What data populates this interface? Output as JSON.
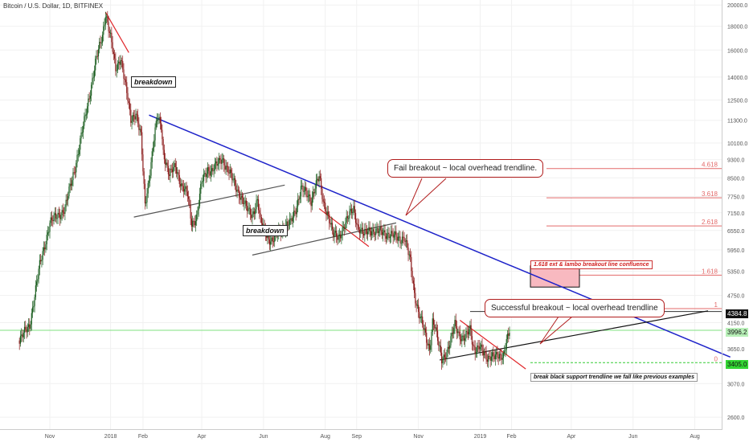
{
  "chart_title": "Bitcoin / U.S. Dollar, 1D, BITFINEX",
  "colors": {
    "up": "#1b5e20",
    "down": "#8b1a1a",
    "blue_trend": "#1d22c9",
    "red_trend": "#e0262a",
    "black_trend": "#111111",
    "fib": "#e36a6a",
    "grid": "#f1f1f1",
    "green_level": "#7fe07f",
    "zone_fill": "#f8b9c0"
  },
  "price_tags": {
    "last_label": "4384.8",
    "mid_label": "3996.2",
    "low_label": "3405.0"
  },
  "annotations": {
    "callout_fail": "Fail breakout ~ local overhead trendline.",
    "callout_success": "Successful breakout ~ local overhead trendline",
    "breakdown_1": "breakdown",
    "breakdown_2": "breakdown",
    "note_confluence": "1.618 ext & lambo breakout line confluence",
    "note_support": "break black support trendline we fall like previous examples"
  },
  "chart_data": {
    "type": "candlestick",
    "title": "Bitcoin / U.S. Dollar, 1D, BITFINEX",
    "y_scale": "log",
    "ylim": [
      2450,
      20500
    ],
    "y_ticks": [
      "20000.0",
      "18000.0",
      "16000.0",
      "14000.0",
      "12500.0",
      "11300.0",
      "10100.0",
      "9300.0",
      "8500.0",
      "7750.0",
      "7150.0",
      "6550.0",
      "5950.0",
      "5350.0",
      "4750.0",
      "4150.0",
      "3650.0",
      "3070.0",
      "2600.0"
    ],
    "x_ticks": [
      {
        "label": "Nov",
        "index": 0
      },
      {
        "label": "2018",
        "index": 60
      },
      {
        "label": "Feb",
        "index": 92
      },
      {
        "label": "Apr",
        "index": 150
      },
      {
        "label": "Jun",
        "index": 211
      },
      {
        "label": "Aug",
        "index": 272
      },
      {
        "label": "Sep",
        "index": 303
      },
      {
        "label": "Nov",
        "index": 364
      },
      {
        "label": "2019",
        "index": 425
      },
      {
        "label": "Feb",
        "index": 456
      },
      {
        "label": "Apr",
        "index": 515
      },
      {
        "label": "Jun",
        "index": 576
      },
      {
        "label": "Aug",
        "index": 637
      }
    ],
    "price_anchors": [
      [
        -30,
        3800
      ],
      [
        -20,
        4100
      ],
      [
        -10,
        5500
      ],
      [
        0,
        6800
      ],
      [
        15,
        7300
      ],
      [
        25,
        9000
      ],
      [
        35,
        11500
      ],
      [
        45,
        15000
      ],
      [
        52,
        17200
      ],
      [
        55,
        19300
      ],
      [
        60,
        17000
      ],
      [
        65,
        14500
      ],
      [
        70,
        15500
      ],
      [
        75,
        13300
      ],
      [
        80,
        11300
      ],
      [
        85,
        11800
      ],
      [
        90,
        10400
      ],
      [
        94,
        7400
      ],
      [
        98,
        8500
      ],
      [
        102,
        10000
      ],
      [
        106,
        11400
      ],
      [
        110,
        11000
      ],
      [
        112,
        9700
      ],
      [
        118,
        8600
      ],
      [
        124,
        9000
      ],
      [
        130,
        8200
      ],
      [
        136,
        7800
      ],
      [
        140,
        6800
      ],
      [
        145,
        7000
      ],
      [
        150,
        8300
      ],
      [
        156,
        8900
      ],
      [
        160,
        8800
      ],
      [
        166,
        9100
      ],
      [
        170,
        9400
      ],
      [
        176,
        8800
      ],
      [
        182,
        8300
      ],
      [
        188,
        7800
      ],
      [
        194,
        7300
      ],
      [
        200,
        7100
      ],
      [
        205,
        7600
      ],
      [
        208,
        6800
      ],
      [
        212,
        6600
      ],
      [
        216,
        6300
      ],
      [
        220,
        6200
      ],
      [
        226,
        6500
      ],
      [
        232,
        6700
      ],
      [
        238,
        6800
      ],
      [
        243,
        7300
      ],
      [
        248,
        8100
      ],
      [
        254,
        7800
      ],
      [
        258,
        7600
      ],
      [
        262,
        8200
      ],
      [
        266,
        8500
      ],
      [
        270,
        7500
      ],
      [
        275,
        7100
      ],
      [
        280,
        6400
      ],
      [
        285,
        6300
      ],
      [
        290,
        6700
      ],
      [
        295,
        7000
      ],
      [
        300,
        7300
      ],
      [
        304,
        6700
      ],
      [
        310,
        6400
      ],
      [
        316,
        6600
      ],
      [
        322,
        6500
      ],
      [
        328,
        6500
      ],
      [
        334,
        6450
      ],
      [
        340,
        6350
      ],
      [
        346,
        6300
      ],
      [
        350,
        6350
      ],
      [
        356,
        5600
      ],
      [
        360,
        4800
      ],
      [
        364,
        4400
      ],
      [
        368,
        4100
      ],
      [
        372,
        3800
      ],
      [
        375,
        3650
      ],
      [
        378,
        4200
      ],
      [
        380,
        4100
      ],
      [
        384,
        3700
      ],
      [
        387,
        3450
      ],
      [
        392,
        3600
      ],
      [
        396,
        3800
      ],
      [
        400,
        4100
      ],
      [
        405,
        3900
      ],
      [
        410,
        3850
      ],
      [
        415,
        4000
      ],
      [
        418,
        3700
      ],
      [
        420,
        3650
      ],
      [
        424,
        3700
      ],
      [
        428,
        3550
      ],
      [
        432,
        3480
      ],
      [
        436,
        3560
      ],
      [
        440,
        3500
      ],
      [
        444,
        3480
      ],
      [
        448,
        3550
      ],
      [
        451,
        3850
      ],
      [
        454,
        3950
      ]
    ],
    "levels": {
      "fib_618": {
        "label": "1.618",
        "price": 5250
      },
      "fib_1": {
        "label": "1",
        "price": 4450
      },
      "fib_2618": {
        "label": "2.618",
        "price": 6700
      },
      "fib_3618": {
        "label": "3.618",
        "price": 7700
      },
      "fib_4618": {
        "label": "4.618",
        "price": 8900
      },
      "fib_0": {
        "label": "0",
        "price": 3405
      },
      "last_price": 4384.8,
      "mid_price": 3996.2,
      "low_price": 3405.0
    },
    "trendlines": [
      {
        "name": "blue",
        "from": [
          98,
          11600
        ],
        "to": [
          672,
          3500
        ]
      },
      {
        "name": "red-top",
        "from": [
          55,
          19300
        ],
        "to": [
          78,
          15800
        ]
      },
      {
        "name": "red-summer",
        "from": [
          266,
          7300
        ],
        "to": [
          315,
          6050
        ]
      },
      {
        "name": "red-recent",
        "from": [
          405,
          4200
        ],
        "to": [
          470,
          3300
        ]
      },
      {
        "name": "black-triangle",
        "from": [
          83,
          7000
        ],
        "to": [
          232,
          8200
        ]
      },
      {
        "name": "black-summer",
        "from": [
          200,
          5800
        ],
        "to": [
          342,
          6800
        ]
      },
      {
        "name": "black-support",
        "from": [
          385,
          3450
        ],
        "to": [
          650,
          4400
        ]
      }
    ]
  }
}
